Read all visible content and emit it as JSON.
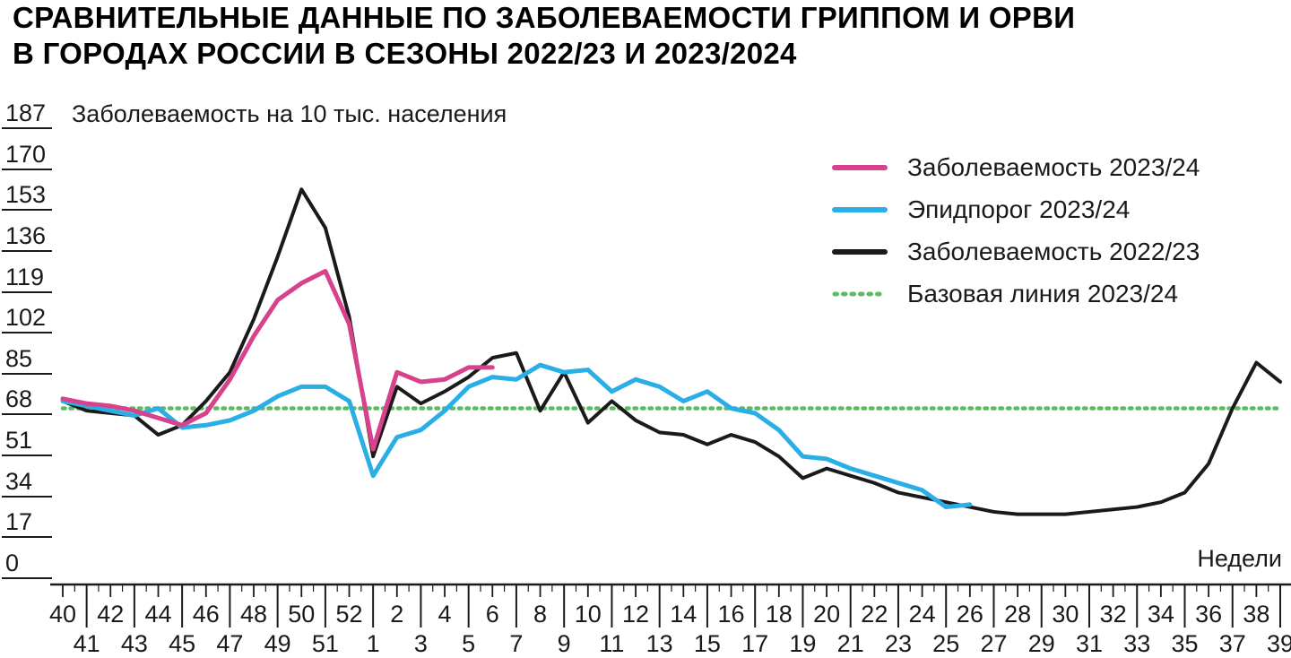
{
  "title_lines": [
    "СРАВНИТЕЛЬНЫЕ ДАННЫЕ ПО ЗАБОЛЕВАЕМОСТИ ГРИППОМ И ОРВИ",
    "В ГОРОДАХ РОССИИ В СЕЗОНЫ 2022/23 И 2023/2024"
  ],
  "colors": {
    "background": "#ffffff",
    "axis": "#1a1a1a",
    "text": "#111111"
  },
  "chart_data": {
    "type": "line",
    "title": "СРАВНИТЕЛЬНЫЕ ДАННЫЕ ПО ЗАБОЛЕВАЕМОСТИ ГРИППОМ И ОРВИ В ГОРОДАХ РОССИИ В СЕЗОНЫ 2022/23 И 2023/2024",
    "ylabel": "Заболеваемость на 10 тыс. населения",
    "xlabel": "Недели",
    "ylim": [
      0,
      187
    ],
    "yticks": [
      187,
      170,
      153,
      136,
      119,
      102,
      85,
      68,
      51,
      34,
      17,
      0
    ],
    "grid": false,
    "legend_position": "top-right",
    "week_labels": [
      40,
      41,
      42,
      43,
      44,
      45,
      46,
      47,
      48,
      49,
      50,
      51,
      52,
      1,
      2,
      3,
      4,
      5,
      6,
      7,
      8,
      9,
      10,
      11,
      12,
      13,
      14,
      15,
      16,
      17,
      18,
      19,
      20,
      21,
      22,
      23,
      24,
      25,
      26,
      27,
      28,
      29,
      30,
      31,
      32,
      33,
      34,
      35,
      36,
      37,
      38,
      39
    ],
    "series": [
      {
        "name": "Заболеваемость 2023/24",
        "color": "#d8418c",
        "style": "solid",
        "start_week": 40,
        "values": [
          69,
          67,
          66,
          64,
          61,
          58,
          63,
          77,
          95,
          110,
          117,
          122,
          100,
          48,
          80,
          76,
          77,
          82,
          82
        ]
      },
      {
        "name": "Эпидпорог 2023/24",
        "color": "#29aee5",
        "style": "solid",
        "start_week": 40,
        "values": [
          68,
          66,
          64,
          62,
          65,
          57,
          58,
          60,
          64,
          70,
          74,
          74,
          68,
          37,
          53,
          56,
          64,
          74,
          78,
          77,
          83,
          80,
          81,
          72,
          77,
          74,
          68,
          72,
          65,
          63,
          56,
          45,
          44,
          40,
          37,
          34,
          31,
          24,
          25
        ]
      },
      {
        "name": "Заболеваемость 2022/23",
        "color": "#1a1a1a",
        "style": "solid",
        "start_week": 40,
        "values": [
          68,
          64,
          63,
          62,
          54,
          58,
          68,
          80,
          102,
          128,
          156,
          140,
          103,
          45,
          74,
          67,
          72,
          78,
          86,
          88,
          64,
          80,
          59,
          68,
          60,
          55,
          54,
          50,
          54,
          51,
          45,
          36,
          40,
          37,
          34,
          30,
          28,
          26,
          24,
          22,
          21,
          21,
          21,
          22,
          23,
          24,
          26,
          30,
          42,
          65,
          84,
          76
        ]
      },
      {
        "name": "Базовая линия 2023/24",
        "color": "#5dbb63",
        "style": "dotted",
        "constant_value": 65
      }
    ]
  }
}
